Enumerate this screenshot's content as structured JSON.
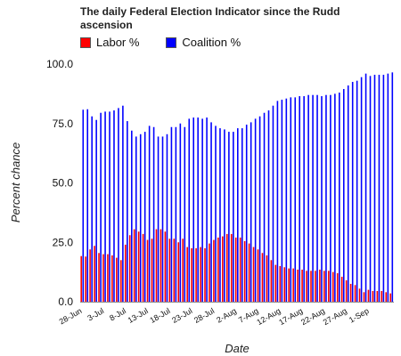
{
  "chart_data": {
    "type": "bar",
    "title": "The daily Federal Election Indicator since the Rudd ascension",
    "xlabel": "Date",
    "ylabel": "Percent chance",
    "ylim": [
      0,
      100
    ],
    "yticks": [
      "0.0",
      "25.0",
      "50.0",
      "75.0",
      "100.0"
    ],
    "grid": false,
    "legend_position": "top",
    "xtick_labels": [
      "28-Jun",
      "3-Jul",
      "8-Jul",
      "13-Jul",
      "18-Jul",
      "23-Jul",
      "28-Jul",
      "2-Aug",
      "7-Aug",
      "12-Aug",
      "17-Aug",
      "22-Aug",
      "27-Aug",
      "1-Sep"
    ],
    "series": [
      {
        "name": "Labor %",
        "color": "#ff0000",
        "values": [
          19.2,
          19.0,
          22.0,
          23.5,
          20.5,
          20.0,
          20.0,
          19.5,
          18.5,
          17.5,
          24.0,
          28.0,
          30.5,
          29.5,
          28.5,
          26.0,
          26.5,
          30.5,
          30.5,
          29.5,
          26.5,
          26.5,
          25.0,
          26.5,
          23.0,
          22.5,
          22.5,
          23.0,
          22.5,
          24.5,
          26.0,
          27.0,
          27.5,
          28.5,
          28.5,
          27.0,
          27.0,
          25.5,
          24.5,
          23.0,
          22.0,
          20.5,
          19.5,
          17.5,
          15.5,
          15.0,
          14.5,
          14.0,
          14.0,
          13.5,
          13.5,
          13.0,
          13.0,
          13.0,
          13.5,
          13.0,
          13.0,
          12.5,
          12.0,
          10.5,
          9.0,
          7.5,
          7.0,
          5.5,
          4.0,
          5.0,
          4.5,
          4.5,
          4.5,
          4.0,
          3.5
        ]
      },
      {
        "name": "Coalition %",
        "color": "#0000ff",
        "values": [
          80.8,
          81.0,
          78.0,
          76.5,
          79.5,
          80.0,
          80.0,
          80.5,
          81.5,
          82.5,
          76.0,
          72.0,
          69.5,
          70.5,
          71.5,
          74.0,
          73.5,
          69.5,
          69.5,
          70.5,
          73.5,
          73.5,
          75.0,
          73.5,
          77.0,
          77.5,
          77.5,
          77.0,
          77.5,
          75.5,
          74.0,
          73.0,
          72.5,
          71.5,
          71.5,
          73.0,
          73.0,
          74.5,
          75.5,
          77.0,
          78.0,
          79.5,
          80.5,
          82.5,
          84.5,
          85.0,
          85.5,
          86.0,
          86.0,
          86.5,
          86.5,
          87.0,
          87.0,
          87.0,
          86.5,
          87.0,
          87.0,
          87.5,
          88.0,
          89.5,
          91.0,
          92.5,
          93.0,
          94.5,
          96.0,
          95.0,
          95.5,
          95.5,
          95.5,
          96.0,
          96.5
        ]
      }
    ]
  }
}
